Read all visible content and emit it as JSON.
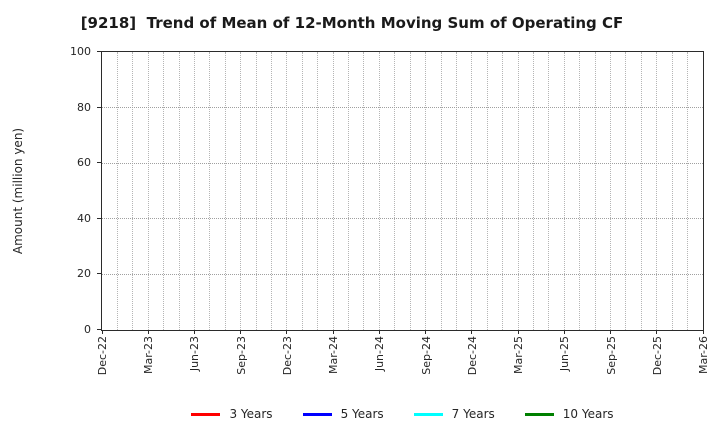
{
  "chart_data": {
    "type": "line",
    "title": "[9218]  Trend of Mean of 12-Month Moving Sum of Operating CF",
    "ylabel": "Amount (million yen)",
    "ylim": [
      0,
      100
    ],
    "yticks": [
      0,
      20,
      40,
      60,
      80,
      100
    ],
    "x_tick_labels": [
      "Dec-22",
      "Mar-23",
      "Jun-23",
      "Sep-23",
      "Dec-23",
      "Mar-24",
      "Jun-24",
      "Sep-24",
      "Dec-24",
      "Mar-25",
      "Jun-25",
      "Sep-25",
      "Dec-25",
      "Mar-26"
    ],
    "months_per_tick": 3,
    "grid": "on",
    "grid_style": "dotted",
    "legend_position": "bottom",
    "series": [
      {
        "name": "3 Years",
        "color": "#ff0000",
        "values": []
      },
      {
        "name": "5 Years",
        "color": "#0000ff",
        "values": []
      },
      {
        "name": "7 Years",
        "color": "#00ffff",
        "values": []
      },
      {
        "name": "10 Years",
        "color": "#008000",
        "values": []
      }
    ],
    "note": "plot area is empty - no data lines are drawn"
  }
}
